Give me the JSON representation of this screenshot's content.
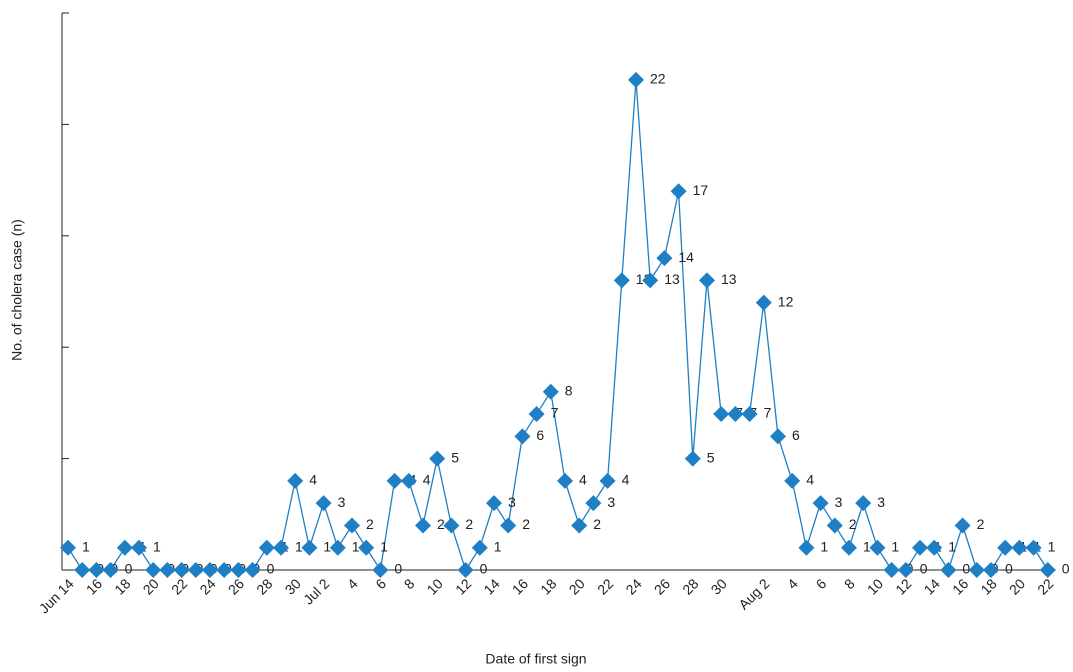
{
  "chart_data": {
    "type": "line",
    "x_label": "Date of first sign",
    "y_label": "No. of cholera case (n)",
    "categories": [
      "Jun 14",
      null,
      "16",
      null,
      "18",
      null,
      "20",
      null,
      "22",
      null,
      "24",
      null,
      "26",
      null,
      "28",
      null,
      "30",
      null,
      "Jul 2",
      null,
      "4",
      null,
      "6",
      null,
      "8",
      null,
      "10",
      null,
      "12",
      null,
      "14",
      null,
      "16",
      null,
      "18",
      null,
      "20",
      null,
      "22",
      null,
      "24",
      null,
      "26",
      null,
      "28",
      null,
      "30",
      null,
      null,
      "Aug 2",
      null,
      "4",
      null,
      "6",
      null,
      "8",
      null,
      "10",
      null,
      "12",
      null,
      "14",
      null,
      "16",
      null,
      "18",
      null,
      "20",
      null,
      "22"
    ],
    "values": [
      1,
      0,
      0,
      0,
      1,
      1,
      0,
      0,
      0,
      0,
      0,
      0,
      0,
      0,
      1,
      1,
      4,
      1,
      3,
      1,
      2,
      1,
      0,
      4,
      4,
      2,
      5,
      2,
      0,
      1,
      3,
      2,
      6,
      7,
      8,
      4,
      2,
      3,
      4,
      13,
      22,
      13,
      14,
      17,
      5,
      13,
      7,
      7,
      7,
      12,
      6,
      4,
      1,
      3,
      2,
      1,
      3,
      1,
      0,
      0,
      1,
      1,
      0,
      2,
      0,
      0,
      1,
      1,
      1,
      0
    ],
    "color": "#1f7fc4",
    "ylim": [
      0,
      25
    ],
    "yticks": [
      0,
      5,
      10,
      15,
      20,
      25
    ]
  }
}
